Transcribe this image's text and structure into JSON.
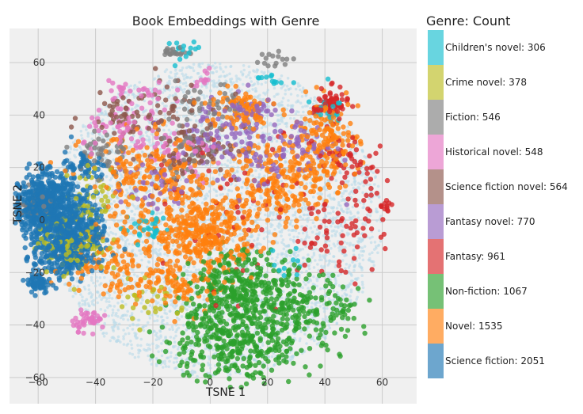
{
  "chart_data": {
    "type": "scatter",
    "title": "Book Embeddings with Genre",
    "xlabel": "TSNE 1",
    "ylabel": "TSNE 2",
    "xlim": [
      -70,
      72
    ],
    "ylim": [
      -70,
      73
    ],
    "xticks": [
      -60,
      -40,
      -20,
      0,
      20,
      40,
      60
    ],
    "yticks": [
      -60,
      -40,
      -20,
      0,
      20,
      40,
      60
    ],
    "grid": true,
    "legend_title": "Genre: Count",
    "legend_placement": "right",
    "series": [
      {
        "name": "Children's novel: 306",
        "color": "#17becf",
        "clusters": [
          [
            -22,
            -3,
            4,
            3,
            30
          ],
          [
            40,
            43,
            3,
            3,
            20
          ],
          [
            -10,
            62,
            4,
            3,
            15
          ],
          [
            22,
            54,
            3,
            2,
            12
          ],
          [
            28,
            -18,
            3,
            3,
            10
          ]
        ]
      },
      {
        "name": "Crime novel: 378",
        "color": "#bcbd22",
        "clusters": [
          [
            -48,
            -8,
            6,
            6,
            130
          ],
          [
            -40,
            10,
            5,
            5,
            40
          ],
          [
            -20,
            -30,
            6,
            6,
            30
          ]
        ]
      },
      {
        "name": "Fiction: 546",
        "color": "#7f7f7f",
        "clusters": [
          [
            -62,
            6,
            3,
            3,
            50
          ],
          [
            -38,
            25,
            5,
            5,
            50
          ],
          [
            -12,
            64,
            2,
            1,
            20
          ],
          [
            -7,
            28,
            5,
            5,
            40
          ],
          [
            0,
            42,
            6,
            5,
            40
          ],
          [
            22,
            61,
            3,
            2,
            15
          ]
        ]
      },
      {
        "name": "Historical novel: 548",
        "color": "#e377c2",
        "clusters": [
          [
            -42,
            -38,
            3,
            2,
            45
          ],
          [
            -28,
            34,
            8,
            5,
            70
          ],
          [
            -10,
            24,
            8,
            5,
            50
          ],
          [
            -25,
            48,
            6,
            4,
            30
          ],
          [
            -3,
            54,
            2,
            2,
            12
          ]
        ]
      },
      {
        "name": "Science fiction novel: 564",
        "color": "#8c564b",
        "clusters": [
          [
            -32,
            40,
            6,
            4,
            40
          ],
          [
            -15,
            45,
            8,
            5,
            40
          ],
          [
            -10,
            24,
            6,
            5,
            40
          ],
          [
            0,
            28,
            6,
            4,
            30
          ]
        ]
      },
      {
        "name": "Fantasy novel: 770",
        "color": "#9467bd",
        "clusters": [
          [
            5,
            32,
            10,
            7,
            90
          ],
          [
            22,
            24,
            10,
            6,
            60
          ],
          [
            -20,
            12,
            7,
            5,
            40
          ],
          [
            35,
            30,
            5,
            5,
            30
          ],
          [
            14,
            42,
            6,
            3,
            30
          ]
        ]
      },
      {
        "name": "Fantasy: 961",
        "color": "#d62728",
        "clusters": [
          [
            42,
            44,
            3,
            3,
            70
          ],
          [
            48,
            22,
            6,
            6,
            50
          ],
          [
            46,
            -5,
            8,
            8,
            60
          ],
          [
            62,
            5,
            1,
            1,
            10
          ],
          [
            15,
            0,
            15,
            15,
            60
          ]
        ]
      },
      {
        "name": "Non-fiction: 1067",
        "color": "#2ca02c",
        "clusters": [
          [
            12,
            -25,
            9,
            7,
            300
          ],
          [
            3,
            -45,
            10,
            8,
            260
          ],
          [
            30,
            -35,
            8,
            8,
            150
          ],
          [
            15,
            -50,
            10,
            5,
            80
          ],
          [
            45,
            -35,
            5,
            5,
            40
          ]
        ]
      },
      {
        "name": "Novel: 1535",
        "color": "#ff7f0e",
        "clusters": [
          [
            -2,
            -5,
            9,
            7,
            350
          ],
          [
            -20,
            15,
            12,
            9,
            220
          ],
          [
            25,
            15,
            9,
            8,
            220
          ],
          [
            40,
            30,
            6,
            8,
            150
          ],
          [
            -35,
            -15,
            8,
            7,
            110
          ],
          [
            10,
            42,
            6,
            4,
            80
          ],
          [
            -10,
            -25,
            7,
            5,
            90
          ]
        ]
      },
      {
        "name": "Science fiction: 2051",
        "color": "#1f77b4",
        "clusters": [
          [
            -58,
            6,
            5,
            6,
            650
          ],
          [
            -48,
            -3,
            6,
            6,
            380
          ],
          [
            -52,
            -14,
            5,
            5,
            220
          ],
          [
            -60,
            -24,
            2,
            2,
            60
          ],
          [
            -43,
            20,
            4,
            3,
            60
          ],
          [
            -70,
            10,
            2,
            2,
            20
          ]
        ]
      }
    ],
    "background_points": {
      "color": "#b9dbe9",
      "count": 4500,
      "center": [
        2,
        0
      ],
      "radius": [
        58,
        60
      ]
    }
  }
}
